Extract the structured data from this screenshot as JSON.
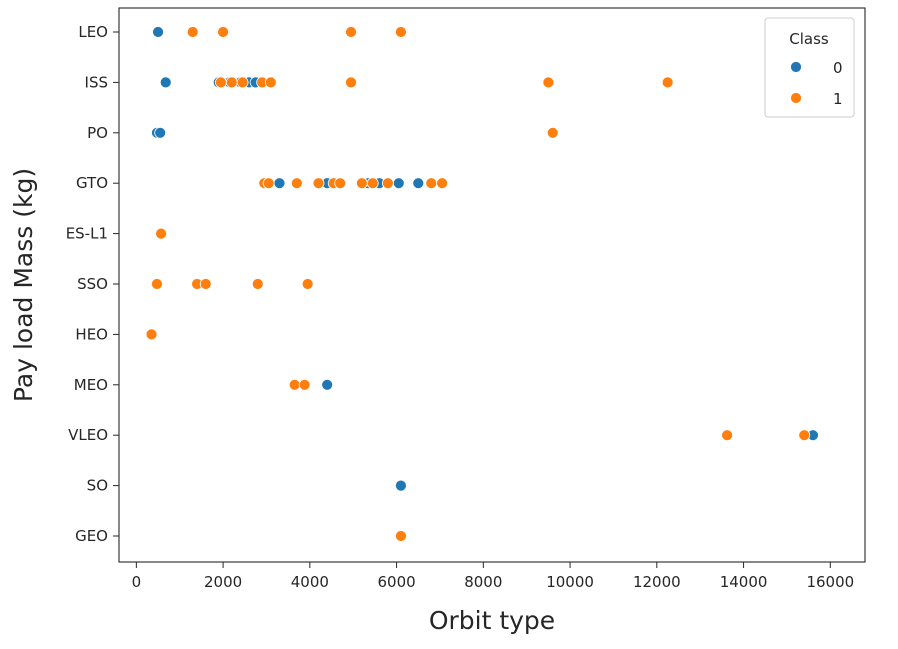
{
  "chart_data": {
    "type": "scatter",
    "xlabel": "Orbit type",
    "ylabel": "Pay load Mass (kg)",
    "xlim": [
      -400,
      16800
    ],
    "xticks": [
      "0",
      "2000",
      "4000",
      "6000",
      "8000",
      "10000",
      "12000",
      "14000",
      "16000"
    ],
    "xtick_values": [
      0,
      2000,
      4000,
      6000,
      8000,
      10000,
      12000,
      14000,
      16000
    ],
    "categories": [
      "LEO",
      "ISS",
      "PO",
      "GTO",
      "ES-L1",
      "SSO",
      "HEO",
      "MEO",
      "VLEO",
      "SO",
      "GEO"
    ],
    "grid": false,
    "legend": {
      "title": "Class",
      "placement": "top-right",
      "entries": [
        {
          "label": "0",
          "color": "#1f77b4"
        },
        {
          "label": "1",
          "color": "#ff7f0e"
        }
      ]
    },
    "series": [
      {
        "name": "0",
        "color": "#1f77b4",
        "points": [
          [
            "LEO",
            500
          ],
          [
            "ISS",
            677
          ],
          [
            "ISS",
            1900
          ],
          [
            "ISS",
            2150
          ],
          [
            "ISS",
            2400
          ],
          [
            "ISS",
            2600
          ],
          [
            "ISS",
            2750
          ],
          [
            "PO",
            475
          ],
          [
            "PO",
            550
          ],
          [
            "GTO",
            3300
          ],
          [
            "GTO",
            4400
          ],
          [
            "GTO",
            4600
          ],
          [
            "GTO",
            5350
          ],
          [
            "GTO",
            5600
          ],
          [
            "GTO",
            6050
          ],
          [
            "GTO",
            6500
          ],
          [
            "MEO",
            4400
          ],
          [
            "VLEO",
            15600
          ],
          [
            "SO",
            6100
          ]
        ]
      },
      {
        "name": "1",
        "color": "#ff7f0e",
        "points": [
          [
            "LEO",
            1300
          ],
          [
            "LEO",
            2000
          ],
          [
            "LEO",
            4950
          ],
          [
            "LEO",
            6100
          ],
          [
            "ISS",
            1950
          ],
          [
            "ISS",
            2200
          ],
          [
            "ISS",
            2450
          ],
          [
            "ISS",
            2900
          ],
          [
            "ISS",
            3100
          ],
          [
            "ISS",
            4950
          ],
          [
            "ISS",
            9500
          ],
          [
            "ISS",
            12250
          ],
          [
            "PO",
            9600
          ],
          [
            "GTO",
            2950
          ],
          [
            "GTO",
            3050
          ],
          [
            "GTO",
            3700
          ],
          [
            "GTO",
            4200
          ],
          [
            "GTO",
            4550
          ],
          [
            "GTO",
            4700
          ],
          [
            "GTO",
            5200
          ],
          [
            "GTO",
            5450
          ],
          [
            "GTO",
            5800
          ],
          [
            "GTO",
            6800
          ],
          [
            "GTO",
            7050
          ],
          [
            "ES-L1",
            570
          ],
          [
            "SSO",
            475
          ],
          [
            "SSO",
            1400
          ],
          [
            "SSO",
            1600
          ],
          [
            "SSO",
            2800
          ],
          [
            "SSO",
            3950
          ],
          [
            "HEO",
            350
          ],
          [
            "MEO",
            3650
          ],
          [
            "MEO",
            3880
          ],
          [
            "VLEO",
            13620
          ],
          [
            "VLEO",
            15400
          ],
          [
            "GEO",
            6100
          ]
        ]
      }
    ]
  }
}
